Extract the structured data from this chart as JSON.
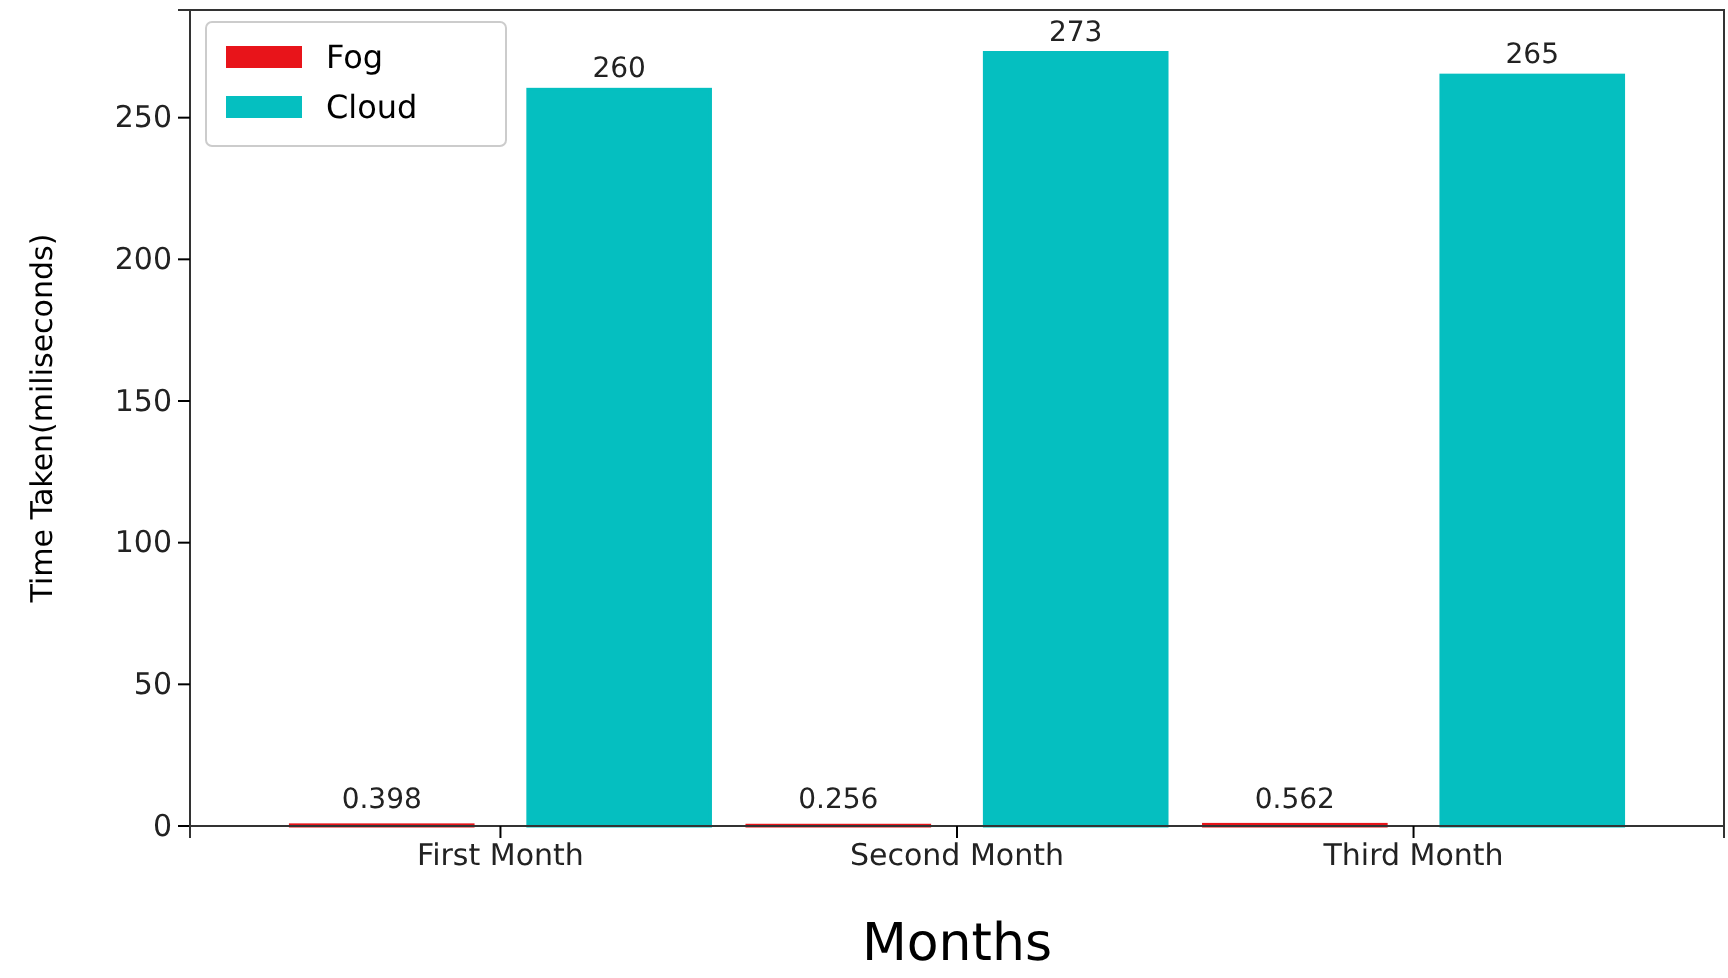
{
  "chart_data": {
    "type": "bar",
    "xlabel": "Months",
    "ylabel": "Time Taken(miliseconds)",
    "categories": [
      "First Month",
      "Second Month",
      "Third Month"
    ],
    "series": [
      {
        "name": "Fog",
        "color": "#e8141a",
        "values": [
          0.398,
          0.256,
          0.562
        ]
      },
      {
        "name": "Cloud",
        "color": "#05bfc0",
        "values": [
          260,
          273,
          265
        ]
      }
    ],
    "ylim": [
      0,
      288
    ],
    "yticks": [
      0,
      50,
      100,
      150,
      200,
      250
    ],
    "data_labels": true,
    "legend": "top left",
    "grid": false
  }
}
